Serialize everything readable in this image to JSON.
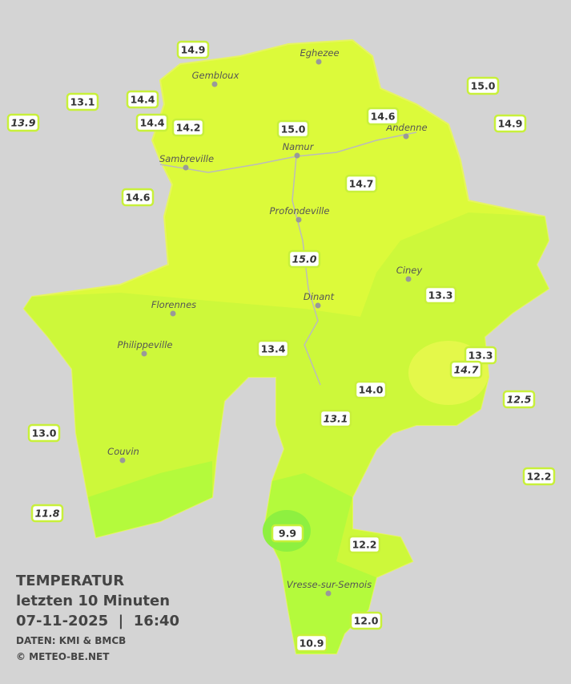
{
  "header": {
    "title": "TEMPERATUR",
    "subtitle": "letzten 10 Minuten",
    "datetime": "07-11-2025  |  16:40",
    "source": "DATEN: KMI & BMCB",
    "credit": "© METEO-BE.NET"
  },
  "stations": [
    "14.9",
    "14.4",
    "13.1",
    "13.9",
    "14.4",
    "14.2",
    "15.0",
    "14.6",
    "15.0",
    "14.9",
    "14.6",
    "14.7",
    "15.0",
    "13.3",
    "13.4",
    "13.3",
    "14.7",
    "12.5",
    "14.0",
    "13.1",
    "13.0",
    "12.2",
    "11.8",
    "9.9",
    "12.2",
    "12.0",
    "10.9"
  ],
  "towns": [
    "Eghezee",
    "Gembloux",
    "Andenne",
    "Namur",
    "Sambreville",
    "Profondeville",
    "Ciney",
    "Dinant",
    "Florennes",
    "Philippeville",
    "Couvin",
    "Vresse-sur-Semois"
  ]
}
